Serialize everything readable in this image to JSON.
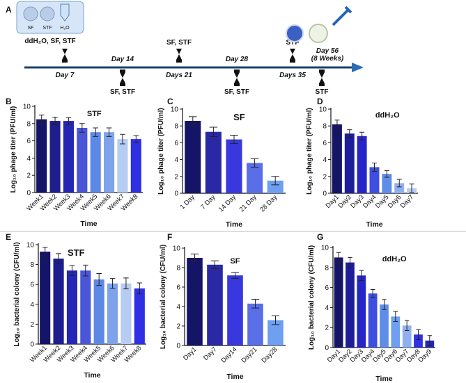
{
  "timeline": {
    "panel_label": "A",
    "icon_labels": [
      "SF",
      "STF",
      "H₂O"
    ],
    "start_label": "ddH₂O, SF, STF",
    "days": [
      "Day 7",
      "Day 14",
      "Days 21",
      "Day 28",
      "Days 35",
      "Day 56",
      "(8 Weeks)"
    ],
    "events": [
      "SF, STF",
      "SF, STF",
      "SF, STF",
      "STF",
      "STF"
    ]
  },
  "chart_data": [
    {
      "type": "bar",
      "panel_label": "B",
      "title": "STF",
      "ylabel": "Log₁₀ phage titer (PFU/ml)",
      "xlabel": "Time",
      "categories": [
        "Week1",
        "Week2",
        "Week3",
        "Week4",
        "Week5",
        "Week6",
        "Week7",
        "Week8"
      ],
      "values": [
        8.5,
        8.3,
        8.3,
        7.5,
        7.0,
        7.0,
        6.2,
        6.2
      ],
      "errors": [
        0.5,
        0.45,
        0.4,
        0.5,
        0.5,
        0.5,
        0.55,
        0.4
      ],
      "colors": [
        "#151567",
        "#1d1d8e",
        "#2626b5",
        "#4a55d8",
        "#5e88e6",
        "#7ea2ec",
        "#b7ccf3",
        "#2f2fe4"
      ],
      "ylim": [
        0,
        10
      ],
      "yticks": [
        0,
        2,
        4,
        6,
        8,
        10
      ]
    },
    {
      "type": "bar",
      "panel_label": "C",
      "title": "SF",
      "ylabel": "Log₁₀ phage titer (PFU/ml)",
      "xlabel": "Time",
      "categories": [
        "1 Day",
        "7 Day",
        "14 Day",
        "21 Day",
        "28 Day"
      ],
      "values": [
        8.6,
        7.3,
        6.4,
        3.6,
        1.5
      ],
      "errors": [
        0.5,
        0.55,
        0.5,
        0.5,
        0.5
      ],
      "colors": [
        "#151567",
        "#2929a6",
        "#3838de",
        "#5a6ee8",
        "#6e9ff0"
      ],
      "ylim": [
        0,
        10
      ],
      "yticks": [
        0,
        2,
        4,
        6,
        8,
        10
      ]
    },
    {
      "type": "bar",
      "panel_label": "D",
      "title": "ddH₂O",
      "ylabel": "Log₁₀ phage titer (PFU/ml)",
      "xlabel": "Time",
      "categories": [
        "Day1",
        "Day2",
        "Day3",
        "Day4",
        "Day5",
        "Day6",
        "Day7"
      ],
      "values": [
        8.2,
        7.1,
        6.8,
        3.1,
        2.3,
        1.2,
        0.6
      ],
      "errors": [
        0.5,
        0.45,
        0.45,
        0.5,
        0.4,
        0.45,
        0.5
      ],
      "colors": [
        "#151567",
        "#1d1d9a",
        "#2626c8",
        "#3d4ee0",
        "#5f8de8",
        "#8fb0ef",
        "#b7ccf3"
      ],
      "ylim": [
        0,
        10
      ],
      "yticks": [
        0,
        2,
        4,
        6,
        8,
        10
      ]
    },
    {
      "type": "bar",
      "panel_label": "E",
      "title": "STF",
      "ylabel": "Log₁₀ bacterial colony (CFU/ml)",
      "xlabel": "Time",
      "categories": [
        "Week1",
        "Week2",
        "Week3",
        "Week4",
        "Week5",
        "Week6",
        "Week7",
        "Week8"
      ],
      "values": [
        9.3,
        8.6,
        7.4,
        7.4,
        6.5,
        6.1,
        6.1,
        5.6
      ],
      "errors": [
        0.45,
        0.5,
        0.5,
        0.55,
        0.6,
        0.5,
        0.55,
        0.55
      ],
      "colors": [
        "#151567",
        "#1d1d8e",
        "#2626b5",
        "#4a55d8",
        "#5e88e6",
        "#7ea2ec",
        "#b7ccf3",
        "#2f2fe4"
      ],
      "ylim": [
        0,
        10
      ],
      "yticks": [
        0,
        2,
        4,
        6,
        8,
        10
      ]
    },
    {
      "type": "bar",
      "panel_label": "F",
      "title": "SF",
      "ylabel": "Log₁₀ bacterial colony (CFU/ml)",
      "xlabel": "Time",
      "categories": [
        "Day1",
        "Day7",
        "Day14",
        "Day21",
        "Day28"
      ],
      "values": [
        9.0,
        8.3,
        7.2,
        4.3,
        2.6
      ],
      "errors": [
        0.4,
        0.4,
        0.3,
        0.45,
        0.45
      ],
      "colors": [
        "#151567",
        "#2929a6",
        "#3838de",
        "#5a6ee8",
        "#6e9ff0"
      ],
      "ylim": [
        0,
        10
      ],
      "yticks": [
        0,
        2,
        4,
        6,
        8,
        10
      ]
    },
    {
      "type": "bar",
      "panel_label": "G",
      "title": "ddH₂O",
      "ylabel": "Log₁₀ bacterial colony (CFU/ml)",
      "xlabel": "Time",
      "categories": [
        "Day1",
        "Day2",
        "Day3",
        "Day4",
        "Day5",
        "Day6",
        "Day7",
        "Day8",
        "Day9"
      ],
      "values": [
        9.0,
        8.5,
        7.2,
        5.4,
        4.3,
        3.1,
        2.2,
        1.3,
        0.7
      ],
      "errors": [
        0.5,
        0.5,
        0.5,
        0.4,
        0.5,
        0.5,
        0.5,
        0.5,
        0.5
      ],
      "colors": [
        "#151567",
        "#1d1d9a",
        "#2626c8",
        "#3d4ee0",
        "#5f8de8",
        "#6e9ff0",
        "#8fb0ef",
        "#3030e4",
        "#2424b8"
      ],
      "ylim": [
        0,
        10
      ],
      "yticks": [
        0,
        2,
        4,
        6,
        8,
        10
      ]
    }
  ]
}
